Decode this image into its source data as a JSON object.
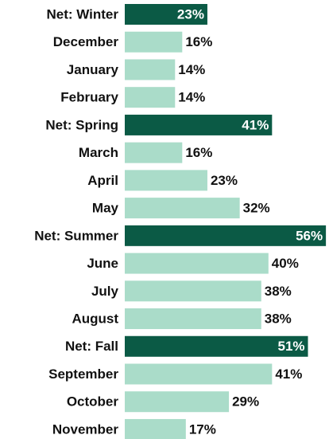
{
  "chart_data": {
    "type": "bar",
    "orientation": "horizontal",
    "categories": [
      "Net: Winter",
      "December",
      "January",
      "February",
      "Net: Spring",
      "March",
      "April",
      "May",
      "Net: Summer",
      "June",
      "July",
      "August",
      "Net: Fall",
      "September",
      "October",
      "November"
    ],
    "values": [
      23,
      16,
      14,
      14,
      41,
      16,
      23,
      32,
      56,
      40,
      38,
      38,
      51,
      41,
      29,
      17
    ],
    "value_labels": [
      "23%",
      "16%",
      "14%",
      "14%",
      "41%",
      "16%",
      "23%",
      "32%",
      "56%",
      "40%",
      "38%",
      "38%",
      "51%",
      "41%",
      "29%",
      "17%"
    ],
    "colors": [
      "#0b5a45",
      "#aadcc9",
      "#aadcc9",
      "#aadcc9",
      "#0b5a45",
      "#aadcc9",
      "#aadcc9",
      "#aadcc9",
      "#0b5a45",
      "#aadcc9",
      "#aadcc9",
      "#aadcc9",
      "#0b5a45",
      "#aadcc9",
      "#aadcc9",
      "#aadcc9"
    ]
  }
}
